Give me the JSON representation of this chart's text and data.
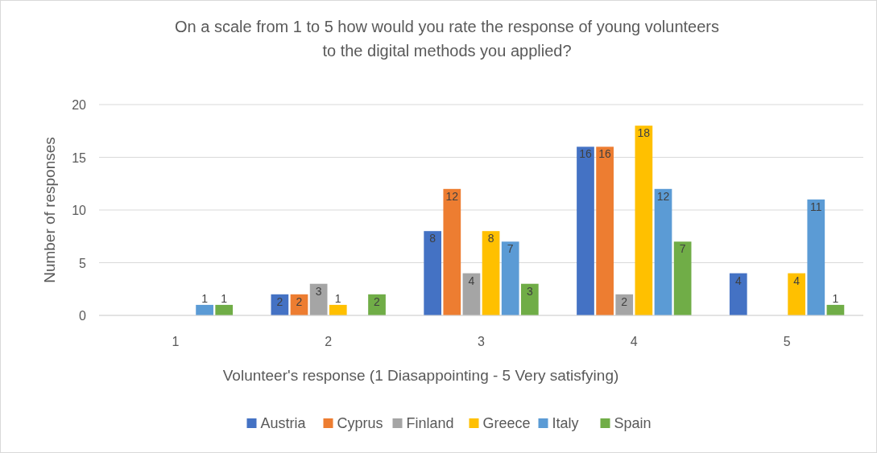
{
  "chart_data": {
    "type": "bar",
    "title": "On a scale from 1 to 5 how would you rate the response of young volunteers to the digital methods you applied?",
    "xlabel": "Volunteer's response (1 Diasappointing - 5 Very satisfying)",
    "ylabel": "Number of responses",
    "categories": [
      "1",
      "2",
      "3",
      "4",
      "5"
    ],
    "series": [
      {
        "name": "Austria",
        "color": "#4472c4",
        "values": [
          0,
          2,
          8,
          16,
          4
        ],
        "value_labels": [
          null,
          "2",
          "8",
          "16",
          "4"
        ]
      },
      {
        "name": "Cyprus",
        "color": "#ed7d31",
        "values": [
          0,
          2,
          12,
          16,
          0
        ],
        "value_labels": [
          null,
          "2",
          "12",
          "16",
          null
        ]
      },
      {
        "name": "Finland",
        "color": "#a5a5a5",
        "values": [
          0,
          3,
          4,
          2,
          0
        ],
        "value_labels": [
          null,
          "3",
          "4",
          "2",
          null
        ]
      },
      {
        "name": "Greece",
        "color": "#ffc000",
        "values": [
          0,
          1,
          8,
          18,
          4
        ],
        "value_labels": [
          null,
          "1",
          "8",
          "18",
          "4"
        ]
      },
      {
        "name": "Italy",
        "color": "#5b9bd5",
        "values": [
          1,
          0,
          7,
          12,
          11
        ],
        "value_labels": [
          "1",
          null,
          "7",
          "12",
          "11"
        ]
      },
      {
        "name": "Spain",
        "color": "#70ad47",
        "values": [
          1,
          2,
          3,
          7,
          1
        ],
        "value_labels": [
          "1",
          "2",
          "3",
          "7",
          "1"
        ]
      }
    ],
    "ylim": [
      0,
      20
    ],
    "yticks": [
      0,
      5,
      10,
      15,
      20
    ],
    "grid": "y",
    "legend": "bottom"
  }
}
